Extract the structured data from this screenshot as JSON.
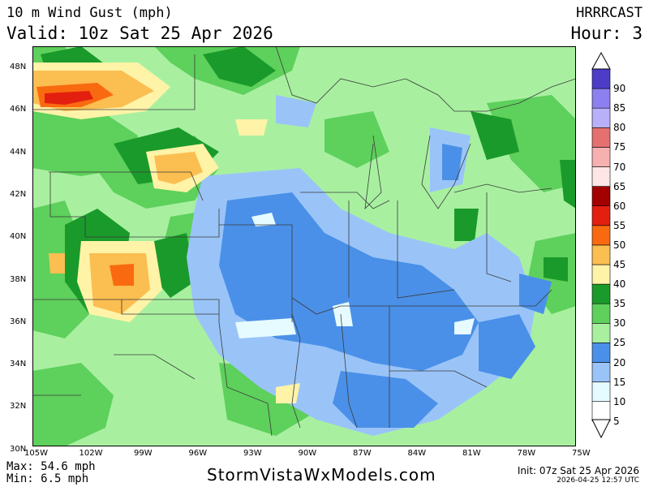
{
  "header": {
    "title": "10 m Wind Gust (mph)",
    "valid": "Valid: 10z Sat 25 Apr 2026",
    "model": "HRRRCAST",
    "hour": "Hour: 3"
  },
  "axes": {
    "lat_labels": [
      "48N",
      "46N",
      "44N",
      "42N",
      "40N",
      "38N",
      "36N",
      "34N",
      "32N",
      "30N"
    ],
    "lon_labels": [
      "105W",
      "102W",
      "99W",
      "96W",
      "93W",
      "90W",
      "87W",
      "84W",
      "81W",
      "78W",
      "75W"
    ]
  },
  "legend": {
    "values": [
      "5",
      "10",
      "15",
      "20",
      "25",
      "30",
      "35",
      "40",
      "45",
      "50",
      "55",
      "60",
      "65",
      "70",
      "75",
      "80",
      "85",
      "90"
    ],
    "colors": [
      "#ffffff",
      "#e6fbff",
      "#9ac4f8",
      "#4a90e8",
      "#a8f0a0",
      "#5ed05c",
      "#1a9a2a",
      "#fff3a8",
      "#fbbe50",
      "#f96a10",
      "#e32010",
      "#a30000",
      "#ffe6e6",
      "#f7b0b0",
      "#e57070",
      "#b8b0f8",
      "#8c80f0",
      "#4c3cc8"
    ]
  },
  "footer": {
    "max": "Max: 54.6 mph",
    "min": "Min: 6.5 mph",
    "brand": "StormVistaWxModels.com",
    "init": "Init: 07z Sat 25 Apr 2026",
    "stamp": "2026-04-25 12:57 UTC"
  },
  "map_colors": {
    "base": "#a8f0a0",
    "mid_green": "#5ed05c",
    "dark_green": "#1a9a2a",
    "light_blue": "#9ac4f8",
    "blue": "#4a90e8",
    "pale": "#e6fbff",
    "yellow": "#fff3a8",
    "orange": "#fbbe50",
    "red": "#e32010",
    "deep_orange": "#f96a10"
  }
}
